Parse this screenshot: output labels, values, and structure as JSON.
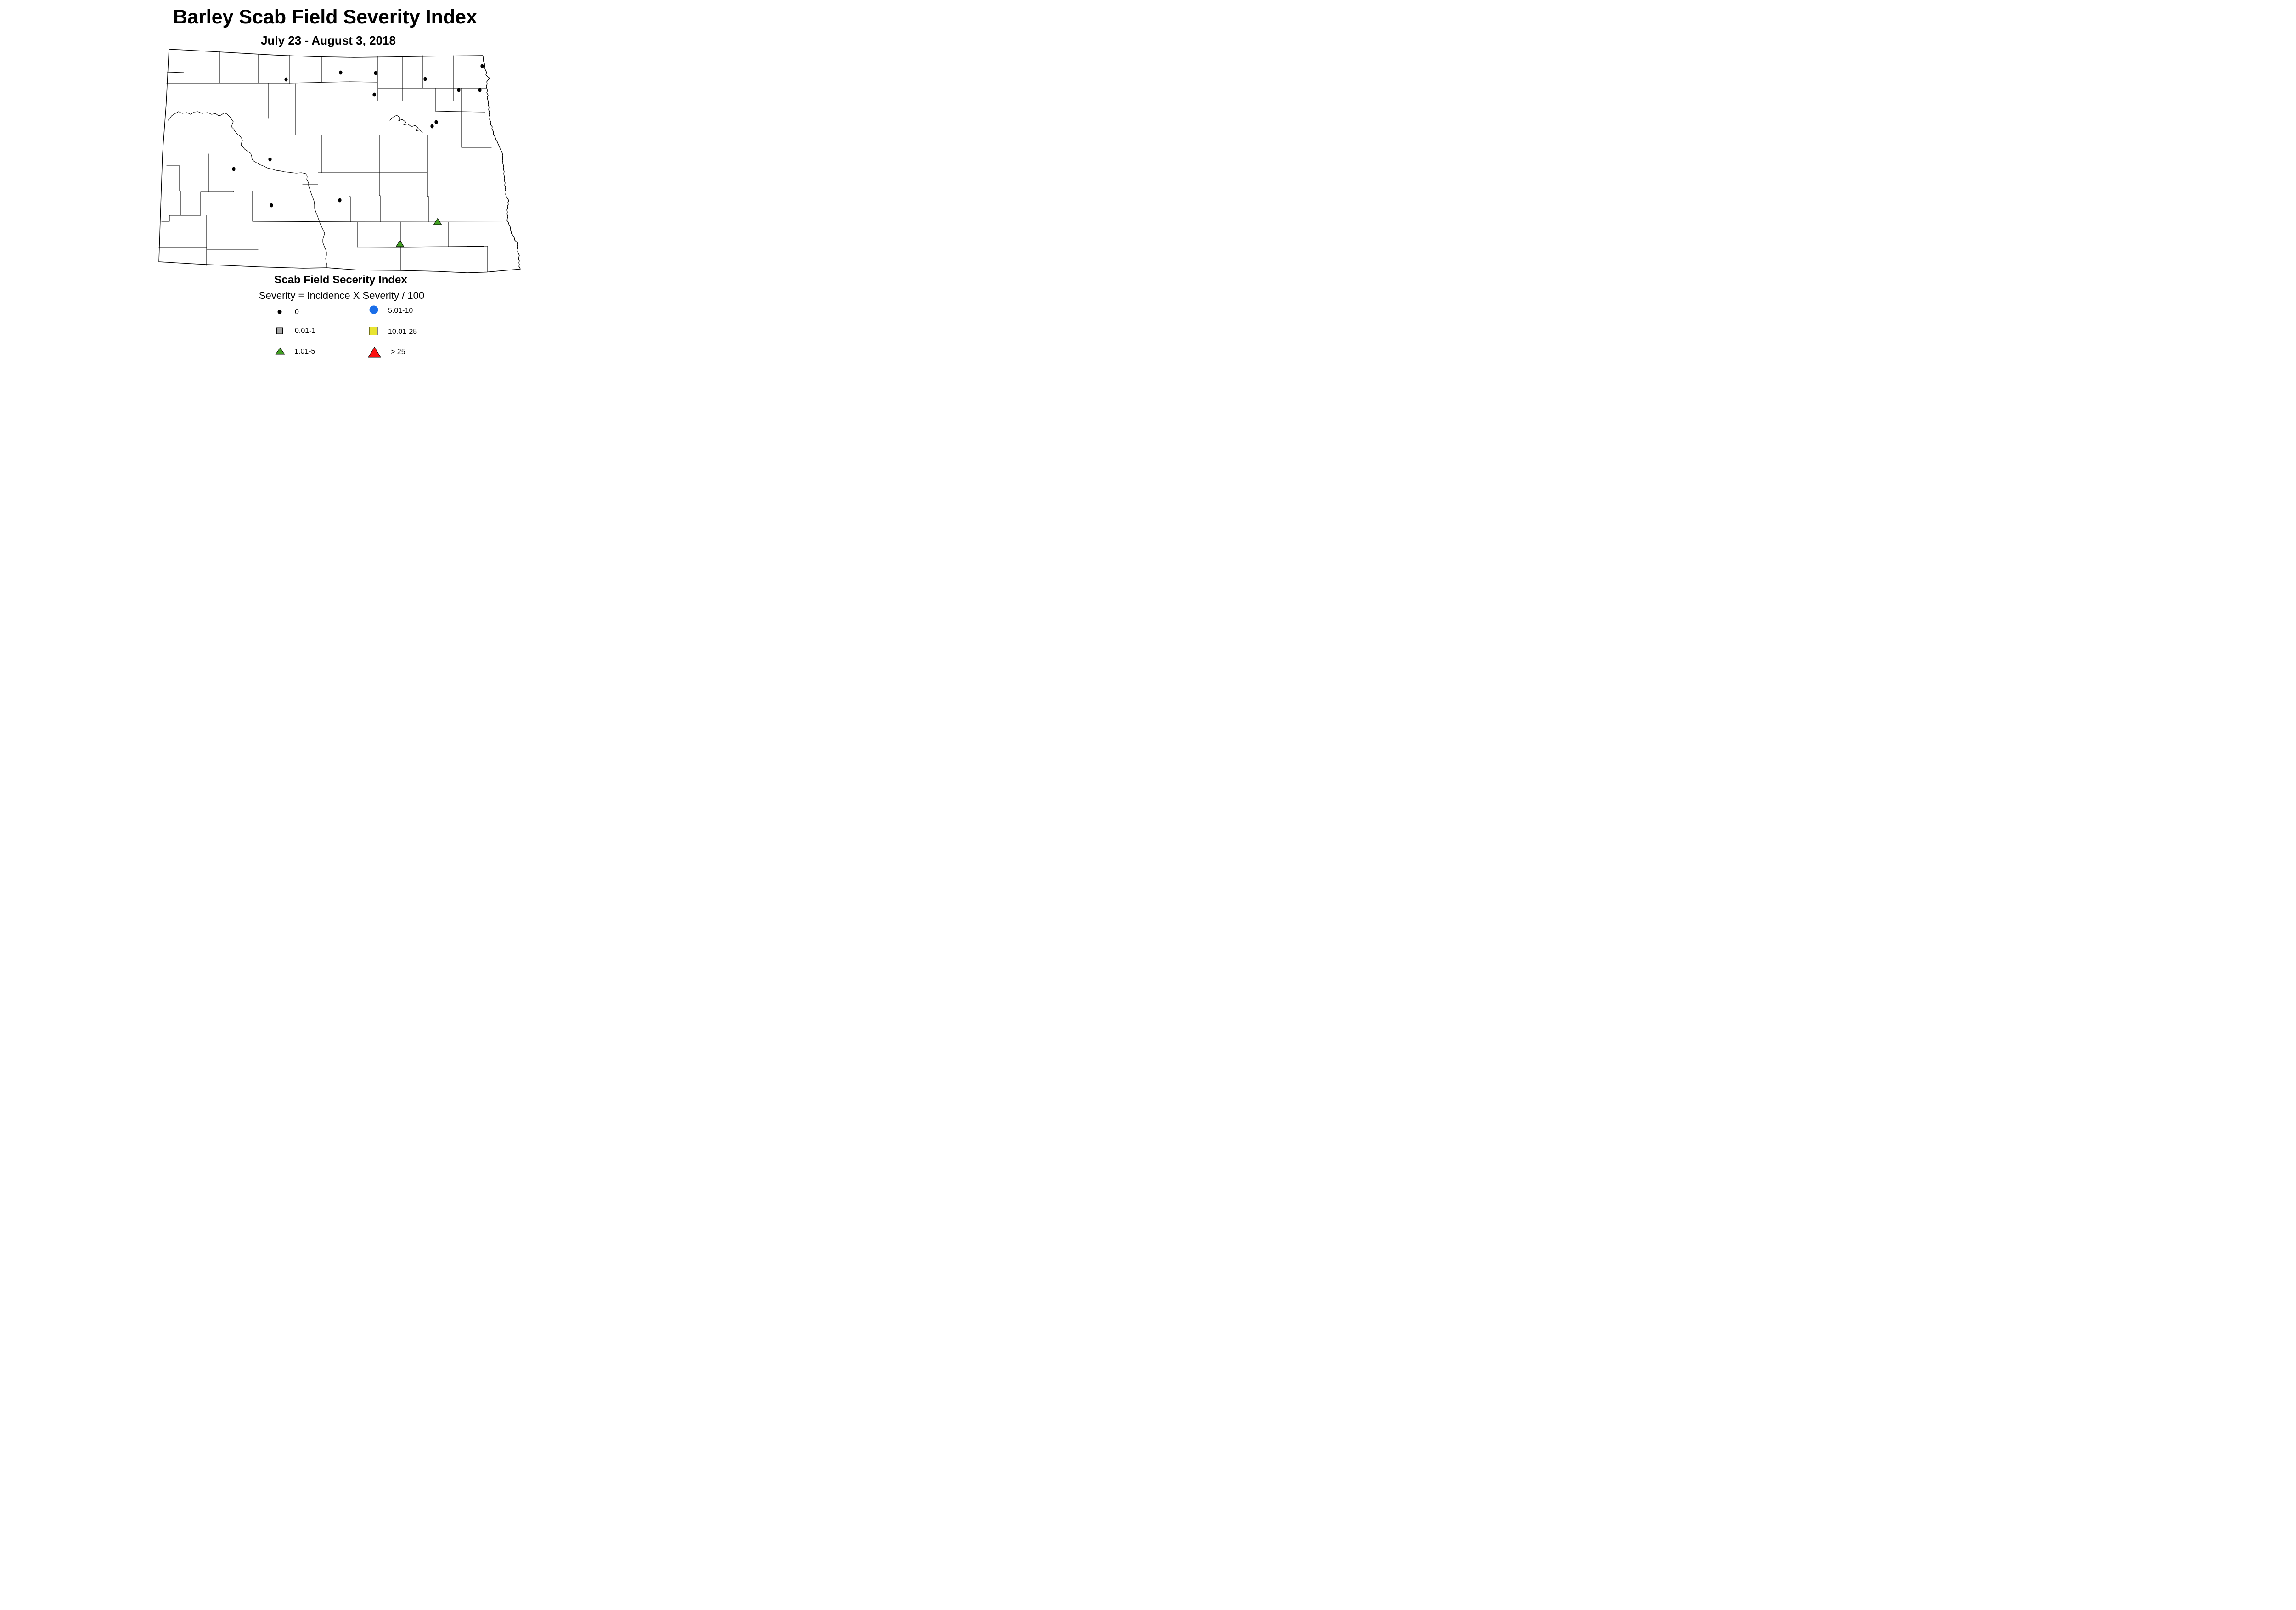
{
  "title": "Barley Scab Field Severity Index",
  "subtitle": "July 23 - August 3, 2018",
  "legend": {
    "title": "Scab Field Secerity Index",
    "subtitle": "Severity = Incidence X Severity / 100",
    "items": [
      {
        "label": "0",
        "symbol": "dot",
        "color": "#000000"
      },
      {
        "label": "0.01-1",
        "symbol": "square",
        "color": "#a8a8a8"
      },
      {
        "label": "1.01-5",
        "symbol": "triangle",
        "color": "#42a023"
      },
      {
        "label": "5.01-10",
        "symbol": "circle",
        "color": "#1a6ee8"
      },
      {
        "label": "10.01-25",
        "symbol": "square",
        "color": "#e8e431"
      },
      {
        "label": "> 25",
        "symbol": "triangle",
        "color": "#fb1111"
      }
    ]
  },
  "chart_data": {
    "type": "scatter",
    "map_region": "North Dakota counties",
    "value_formula": "Severity = Incidence X Severity / 100",
    "series": [
      {
        "name": "0",
        "marker": "black dot",
        "color": "#000000",
        "count": 14,
        "points": [
          [
            742,
            158
          ],
          [
            818,
            159
          ],
          [
            623,
            173
          ],
          [
            926,
            172
          ],
          [
            1050,
            144
          ],
          [
            815,
            206
          ],
          [
            999,
            196
          ],
          [
            1045,
            196
          ],
          [
            950,
            266
          ],
          [
            941,
            275
          ],
          [
            588,
            347
          ],
          [
            509,
            368
          ],
          [
            740,
            436
          ],
          [
            591,
            447
          ]
        ]
      },
      {
        "name": "1.01-5",
        "marker": "green triangle",
        "color": "#42a023",
        "count": 2,
        "points": [
          [
            953,
            483
          ],
          [
            871,
            531
          ]
        ]
      },
      {
        "name": "0.01-1",
        "marker": "gray square",
        "color": "#a8a8a8",
        "count": 0,
        "points": []
      },
      {
        "name": "5.01-10",
        "marker": "blue circle",
        "color": "#1a6ee8",
        "count": 0,
        "points": []
      },
      {
        "name": "10.01-25",
        "marker": "yellow square",
        "color": "#e8e431",
        "count": 0,
        "points": []
      },
      {
        "name": "> 25",
        "marker": "red triangle",
        "color": "#fb1111",
        "count": 0,
        "points": []
      }
    ]
  }
}
